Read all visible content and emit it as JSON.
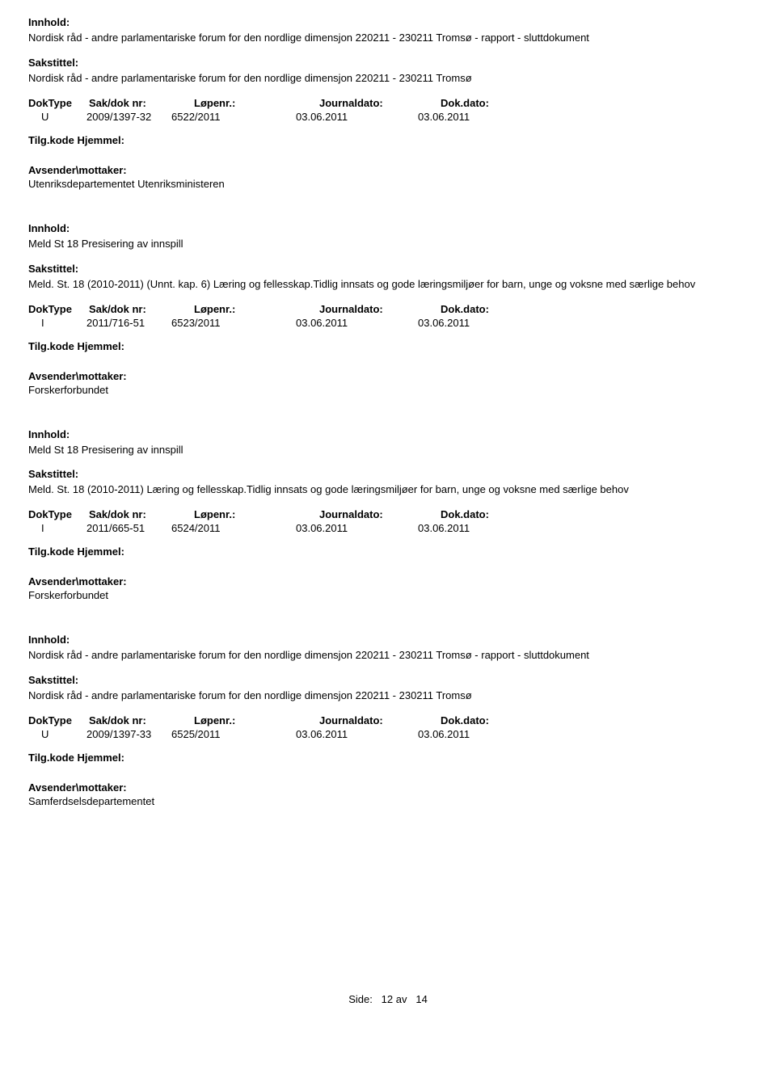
{
  "labels": {
    "innhold": "Innhold:",
    "sakstittel": "Sakstittel:",
    "doktype": "DokType",
    "sakdoknr": "Sak/dok nr:",
    "lopenr": "Løpenr.:",
    "journaldato": "Journaldato:",
    "dokdato": "Dok.dato:",
    "tilgkode": "Tilg.kode",
    "hjemmel": "Hjemmel:",
    "avsender": "Avsender\\mottaker:"
  },
  "entries": [
    {
      "innhold": "Nordisk råd - andre parlamentariske forum for den nordlige dimensjon 220211 - 230211 Tromsø - rapport - sluttdokument",
      "sakstittel": "Nordisk råd - andre parlamentariske forum for den nordlige dimensjon 220211 - 230211 Tromsø",
      "doktype": "U",
      "sakdoknr": "2009/1397-32",
      "lopenr": "6522/2011",
      "journaldato": "03.06.2011",
      "dokdato": "03.06.2011",
      "avsender": "Utenriksdepartementet Utenriksministeren"
    },
    {
      "innhold": "Meld St 18 Presisering av innspill",
      "sakstittel": "Meld. St. 18 (2010-2011) (Unnt. kap. 6) Læring og fellesskap.Tidlig innsats og gode læringsmiljøer for barn, unge og voksne med særlige behov",
      "doktype": "I",
      "sakdoknr": "2011/716-51",
      "lopenr": "6523/2011",
      "journaldato": "03.06.2011",
      "dokdato": "03.06.2011",
      "avsender": "Forskerforbundet"
    },
    {
      "innhold": "Meld St 18 Presisering av innspill",
      "sakstittel": "Meld. St. 18 (2010-2011) Læring og fellesskap.Tidlig innsats og gode læringsmiljøer for barn, unge og voksne med særlige behov",
      "doktype": "I",
      "sakdoknr": "2011/665-51",
      "lopenr": "6524/2011",
      "journaldato": "03.06.2011",
      "dokdato": "03.06.2011",
      "avsender": "Forskerforbundet"
    },
    {
      "innhold": "Nordisk råd - andre parlamentariske forum for den nordlige dimensjon 220211 - 230211 Tromsø - rapport - sluttdokument",
      "sakstittel": "Nordisk råd - andre parlamentariske forum for den nordlige dimensjon 220211 - 230211 Tromsø",
      "doktype": "U",
      "sakdoknr": "2009/1397-33",
      "lopenr": "6525/2011",
      "journaldato": "03.06.2011",
      "dokdato": "03.06.2011",
      "avsender": "Samferdselsdepartementet"
    }
  ],
  "footer": {
    "prefix": "Side:",
    "current": "12",
    "sep": "av",
    "total": "14"
  }
}
